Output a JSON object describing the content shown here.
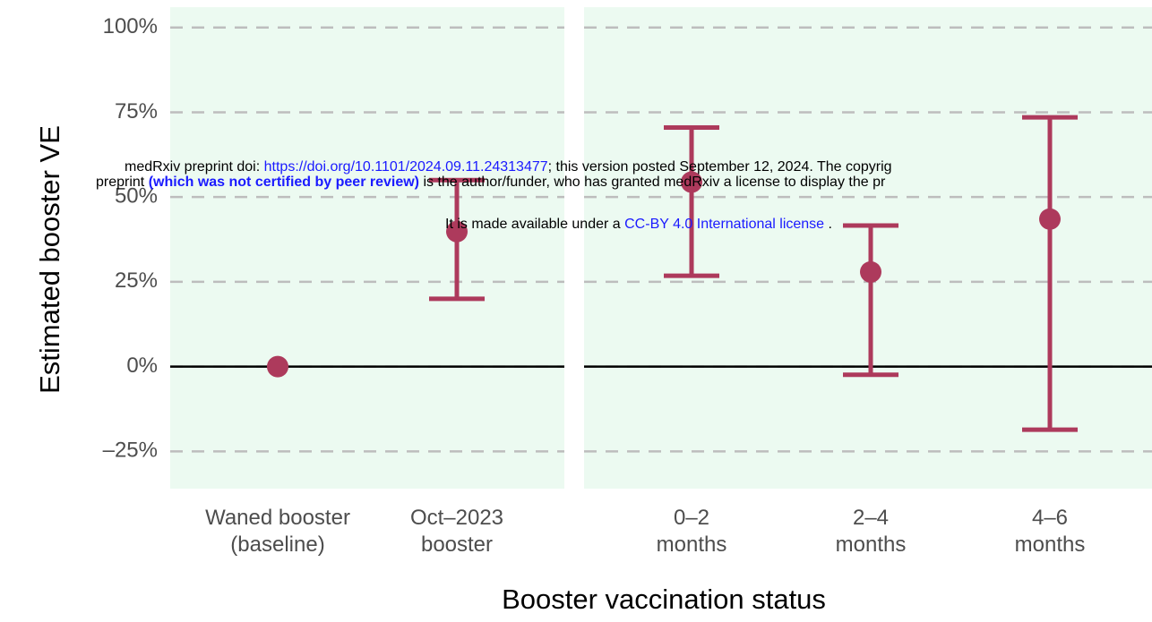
{
  "chart_data": [
    {
      "type": "errorbar",
      "ylabel": "Estimated booster VE",
      "xlabel": "Booster vaccination status",
      "categories": [
        [
          "Waned booster",
          "(baseline)"
        ],
        [
          "Oct–2023",
          "booster"
        ]
      ],
      "values": [
        0,
        39.8
      ],
      "lower": [
        null,
        20
      ],
      "upper": [
        null,
        55
      ],
      "color": "#ad3a5c",
      "ylim": [
        -36,
        106
      ],
      "yticks": [
        {
          "value": -25,
          "label": "–25%"
        },
        {
          "value": 0,
          "label": "0%"
        },
        {
          "value": 25,
          "label": "25%"
        },
        {
          "value": 50,
          "label": "50%"
        },
        {
          "value": 75,
          "label": "75%"
        },
        {
          "value": 100,
          "label": "100%"
        }
      ],
      "grid": true
    },
    {
      "type": "errorbar",
      "categories": [
        [
          "0–2",
          "months"
        ],
        [
          "2–4",
          "months"
        ],
        [
          "4–6",
          "months"
        ]
      ],
      "values": [
        54.4,
        27.9,
        43.5
      ],
      "lower": [
        26.8,
        -2.4,
        -18.6
      ],
      "upper": [
        70.5,
        41.6,
        73.5
      ],
      "color": "#ad3a5c",
      "ylim": [
        -36,
        106
      ],
      "grid": true
    }
  ],
  "watermark": {
    "line1": [
      "medRxiv preprint doi: ",
      "https://doi.org/10.1101/2024.09.11.24313477",
      "; this version posted September 12, 2024. The copyrig"
    ],
    "line2": [
      "preprint ",
      "(which was not certified by peer review)",
      " is the author/funder, who has granted medRxiv a license to display the pr"
    ],
    "line3": [
      "It is made available under a ",
      "CC-BY 4.0 International license",
      " ."
    ]
  }
}
